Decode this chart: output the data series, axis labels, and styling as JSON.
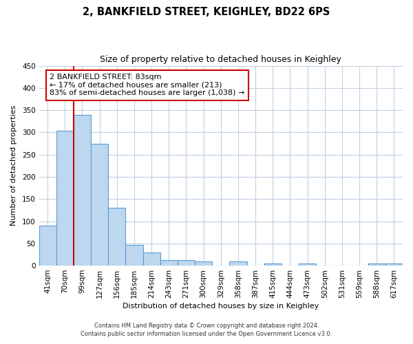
{
  "title": "2, BANKFIELD STREET, KEIGHLEY, BD22 6PS",
  "subtitle": "Size of property relative to detached houses in Keighley",
  "xlabel": "Distribution of detached houses by size in Keighley",
  "ylabel": "Number of detached properties",
  "bar_labels": [
    "41sqm",
    "70sqm",
    "99sqm",
    "127sqm",
    "156sqm",
    "185sqm",
    "214sqm",
    "243sqm",
    "271sqm",
    "300sqm",
    "329sqm",
    "358sqm",
    "387sqm",
    "415sqm",
    "444sqm",
    "473sqm",
    "502sqm",
    "531sqm",
    "559sqm",
    "588sqm",
    "617sqm"
  ],
  "bar_values": [
    90,
    303,
    340,
    275,
    130,
    46,
    30,
    13,
    13,
    10,
    0,
    10,
    0,
    5,
    0,
    5,
    0,
    0,
    0,
    5,
    5
  ],
  "bar_color": "#bdd7ee",
  "bar_edge_color": "#5b9bd5",
  "red_line_x": 1.5,
  "annotation_title": "2 BANKFIELD STREET: 83sqm",
  "annotation_line1": "← 17% of detached houses are smaller (213)",
  "annotation_line2": "83% of semi-detached houses are larger (1,038) →",
  "annotation_box_color": "#ffffff",
  "annotation_box_edge": "#cc0000",
  "red_line_color": "#cc0000",
  "ylim": [
    0,
    450
  ],
  "yticks": [
    0,
    50,
    100,
    150,
    200,
    250,
    300,
    350,
    400,
    450
  ],
  "footer1": "Contains HM Land Registry data © Crown copyright and database right 2024.",
  "footer2": "Contains public sector information licensed under the Open Government Licence v3.0.",
  "bg_color": "#ffffff",
  "grid_color": "#c0d0e0",
  "title_fontsize": 10.5,
  "subtitle_fontsize": 9,
  "axis_fontsize": 8,
  "tick_fontsize": 7.5,
  "ann_fontsize": 8
}
